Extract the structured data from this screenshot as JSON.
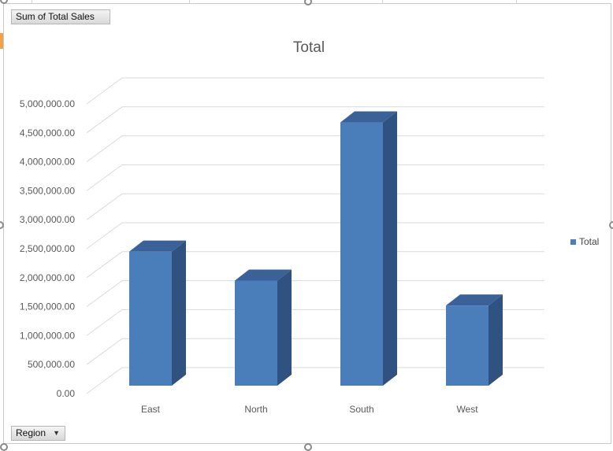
{
  "pivot_fields": {
    "value_field": "Sum of Total Sales",
    "axis_field": "Region"
  },
  "chart_data": {
    "type": "bar",
    "title": "Total",
    "categories": [
      "East",
      "North",
      "South",
      "West"
    ],
    "series": [
      {
        "name": "Total",
        "values": [
          2450000,
          1950000,
          4680000,
          1520000
        ]
      }
    ],
    "y_ticks": [
      "0.00",
      "500,000.00",
      "1,000,000.00",
      "1,500,000.00",
      "2,000,000.00",
      "2,500,000.00",
      "3,000,000.00",
      "3,500,000.00",
      "4,000,000.00",
      "4,500,000.00",
      "5,000,000.00"
    ],
    "ylim": [
      0,
      5000000
    ],
    "grid": true,
    "legend": "right",
    "colors": {
      "front": "#4a7ebb",
      "side": "#2f5281",
      "top": "#3a6299"
    }
  }
}
